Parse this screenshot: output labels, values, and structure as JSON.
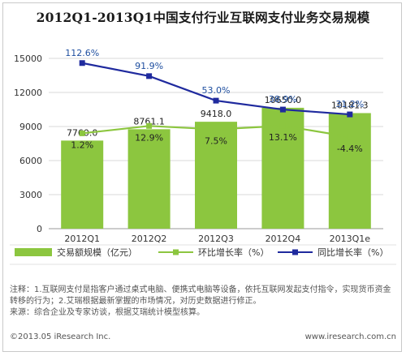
{
  "title": "2012Q1-2013Q1中国支付行业互联网支付业务交易规模",
  "chart_data": {
    "type": "bar",
    "categories": [
      "2012Q1",
      "2012Q2",
      "2012Q3",
      "2012Q4",
      "2013Q1e"
    ],
    "series": [
      {
        "name": "交易额规模（亿元）",
        "type": "bar",
        "axis": "left",
        "values": [
          7760.0,
          8761.1,
          9418.0,
          10650.0,
          10181.3
        ],
        "labels": [
          "7760.0",
          "8761.1",
          "9418.0",
          "10650.0",
          "10181.3"
        ]
      },
      {
        "name": "环比增长率（%）",
        "type": "line",
        "axis": "right",
        "values": [
          1.2,
          12.9,
          7.5,
          13.1,
          -4.4
        ],
        "labels": [
          "1.2%",
          "12.9%",
          "7.5%",
          "13.1%",
          "-4.4%"
        ]
      },
      {
        "name": "同比增长率（%）",
        "type": "line",
        "axis": "right",
        "values": [
          112.6,
          91.9,
          53.0,
          38.9,
          31.2
        ],
        "labels": [
          "112.6%",
          "91.9%",
          "53.0%",
          "38.9%",
          "31.2%"
        ]
      }
    ],
    "yticks": [
      "0",
      "3000",
      "6000",
      "9000",
      "12000",
      "15000"
    ],
    "ylim": [
      0,
      15000
    ],
    "legend_position": "bottom",
    "colors": {
      "bar": "#8cc63f",
      "yoy_line": "#1f2a9e",
      "mom_line": "#8cc63f"
    }
  },
  "notes": {
    "line1": "注释：1.互联网支付是指客户通过桌式电脑、便携式电脑等设备，依托互联网发起支付指令，实现货币资金转移的行为；2.艾瑞根据最新掌握的市场情况，对历史数据进行修正。",
    "line2": "来源：综合企业及专家访谈，根据艾瑞统计模型核算。"
  },
  "copyright": "©2013.05 iResearch Inc.",
  "website": "www.iresearch.com.cn"
}
